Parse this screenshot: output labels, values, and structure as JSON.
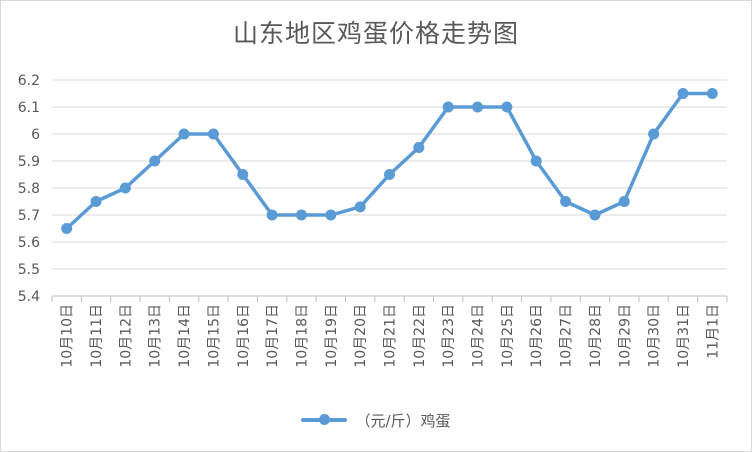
{
  "chart_data": {
    "type": "line",
    "title": "山东地区鸡蛋价格走势图",
    "categories": [
      "10月10日",
      "10月11日",
      "10月12日",
      "10月13日",
      "10月14日",
      "10月15日",
      "10月16日",
      "10月17日",
      "10月18日",
      "10月19日",
      "10月20日",
      "10月21日",
      "10月22日",
      "10月23日",
      "10月24日",
      "10月25日",
      "10月26日",
      "10月27日",
      "10月28日",
      "10月29日",
      "10月30日",
      "10月31日",
      "11月1日"
    ],
    "series": [
      {
        "name": "（元/斤）鸡蛋",
        "values": [
          5.65,
          5.75,
          5.8,
          5.9,
          6.0,
          6.0,
          5.85,
          5.7,
          5.7,
          5.7,
          5.73,
          5.85,
          5.95,
          6.1,
          6.1,
          6.1,
          5.9,
          5.75,
          5.7,
          5.75,
          6.0,
          6.15,
          6.15
        ],
        "color": "#5b9bd5"
      }
    ],
    "yticks": [
      "5.4",
      "5.5",
      "5.6",
      "5.7",
      "5.8",
      "5.9",
      "6",
      "6.1",
      "6.2"
    ],
    "ylim": [
      5.4,
      6.2
    ],
    "grid": true,
    "legend_position": "bottom"
  }
}
